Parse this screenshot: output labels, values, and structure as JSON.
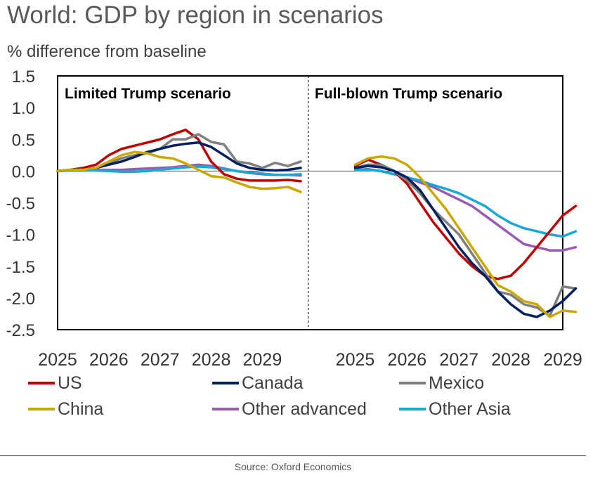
{
  "title": "World: GDP by region in scenarios",
  "subtitle": "% difference from baseline",
  "source": "Source: Oxford Economics",
  "chart_data": {
    "type": "line",
    "ylim": [
      -2.5,
      1.5
    ],
    "yticks": [
      "1.5",
      "1.0",
      "0.5",
      "0.0",
      "-0.5",
      "-1.0",
      "-1.5",
      "-2.0",
      "-2.5"
    ],
    "ytick_values": [
      1.5,
      1.0,
      0.5,
      0.0,
      -0.5,
      -1.0,
      -1.5,
      -2.0,
      -2.5
    ],
    "xticks": [
      "2025",
      "2026",
      "2027",
      "2028",
      "2029"
    ],
    "x": [
      2025.0,
      2025.25,
      2025.5,
      2025.75,
      2026.0,
      2026.25,
      2026.5,
      2026.75,
      2027.0,
      2027.25,
      2027.5,
      2027.75,
      2028.0,
      2028.25,
      2028.5,
      2028.75,
      2029.0,
      2029.25,
      2029.5,
      2029.75
    ],
    "legend": [
      {
        "name": "US",
        "color": "#c00000"
      },
      {
        "name": "Canada",
        "color": "#002060"
      },
      {
        "name": "Mexico",
        "color": "#7f7f7f"
      },
      {
        "name": "China",
        "color": "#c9a800"
      },
      {
        "name": "Other advanced",
        "color": "#9b59b6"
      },
      {
        "name": "Other Asia",
        "color": "#17a8d6"
      }
    ],
    "panels": [
      {
        "title": "Limited Trump scenario",
        "xrange": [
          2025,
          2029.9
        ],
        "series": [
          {
            "name": "US",
            "values": [
              0,
              0.02,
              0.05,
              0.1,
              0.25,
              0.35,
              0.4,
              0.45,
              0.5,
              0.58,
              0.65,
              0.5,
              0.15,
              -0.05,
              -0.12,
              -0.15,
              -0.15,
              -0.15,
              -0.14,
              -0.16
            ]
          },
          {
            "name": "Canada",
            "values": [
              0,
              0.02,
              0.02,
              0.05,
              0.1,
              0.15,
              0.22,
              0.3,
              0.35,
              0.4,
              0.43,
              0.45,
              0.38,
              0.25,
              0.12,
              0.05,
              0.02,
              0.01,
              0.02,
              0.05
            ]
          },
          {
            "name": "Mexico",
            "values": [
              0,
              0.02,
              0.02,
              0.05,
              0.12,
              0.2,
              0.25,
              0.28,
              0.35,
              0.5,
              0.5,
              0.58,
              0.46,
              0.42,
              0.15,
              0.12,
              0.05,
              0.13,
              0.08,
              0.15
            ]
          },
          {
            "name": "China",
            "values": [
              0,
              0.02,
              0.02,
              0.05,
              0.15,
              0.25,
              0.3,
              0.28,
              0.22,
              0.2,
              0.12,
              0.02,
              -0.08,
              -0.1,
              -0.18,
              -0.25,
              -0.28,
              -0.27,
              -0.25,
              -0.33
            ]
          },
          {
            "name": "Other advanced",
            "values": [
              0,
              0.01,
              0.01,
              0.02,
              0.02,
              0.02,
              0.03,
              0.04,
              0.05,
              0.06,
              0.08,
              0.1,
              0.08,
              0.04,
              0.0,
              -0.03,
              -0.05,
              -0.06,
              -0.06,
              -0.07
            ]
          },
          {
            "name": "Other Asia",
            "values": [
              0,
              0.01,
              0.01,
              0.01,
              0.0,
              -0.01,
              -0.01,
              0.0,
              0.02,
              0.04,
              0.06,
              0.07,
              0.06,
              0.03,
              0.0,
              -0.02,
              -0.04,
              -0.06,
              -0.06,
              -0.05
            ]
          }
        ]
      },
      {
        "title": "Full-blown Trump scenario",
        "xrange": [
          2024.1,
          2029.0
        ],
        "series": [
          {
            "name": "US",
            "values": [
              0.08,
              0.18,
              0.1,
              0.0,
              -0.2,
              -0.5,
              -0.8,
              -1.05,
              -1.3,
              -1.5,
              -1.65,
              -1.7,
              -1.65,
              -1.45,
              -1.2,
              -0.95,
              -0.7,
              -0.55
            ]
          },
          {
            "name": "Canada",
            "values": [
              0.05,
              0.08,
              0.06,
              0.0,
              -0.1,
              -0.3,
              -0.6,
              -0.9,
              -1.2,
              -1.45,
              -1.65,
              -1.9,
              -2.1,
              -2.25,
              -2.3,
              -2.2,
              -2.05,
              -1.85
            ]
          },
          {
            "name": "Mexico",
            "values": [
              0.05,
              0.1,
              0.1,
              0.0,
              -0.15,
              -0.35,
              -0.6,
              -0.8,
              -1.0,
              -1.3,
              -1.6,
              -1.9,
              -1.95,
              -2.1,
              -2.15,
              -2.28,
              -1.82,
              -1.85
            ]
          },
          {
            "name": "China",
            "values": [
              0.1,
              0.2,
              0.23,
              0.2,
              0.1,
              -0.1,
              -0.35,
              -0.6,
              -0.9,
              -1.2,
              -1.5,
              -1.8,
              -1.9,
              -2.05,
              -2.1,
              -2.3,
              -2.2,
              -2.22
            ]
          },
          {
            "name": "Other advanced",
            "values": [
              0.02,
              0.03,
              0.0,
              -0.05,
              -0.1,
              -0.18,
              -0.25,
              -0.35,
              -0.45,
              -0.55,
              -0.7,
              -0.85,
              -1.0,
              -1.15,
              -1.2,
              -1.25,
              -1.25,
              -1.2
            ]
          },
          {
            "name": "Other Asia",
            "values": [
              0.02,
              0.02,
              0.0,
              -0.05,
              -0.1,
              -0.15,
              -0.22,
              -0.28,
              -0.35,
              -0.45,
              -0.55,
              -0.7,
              -0.82,
              -0.9,
              -0.95,
              -1.0,
              -1.03,
              -0.95
            ]
          }
        ]
      }
    ]
  }
}
